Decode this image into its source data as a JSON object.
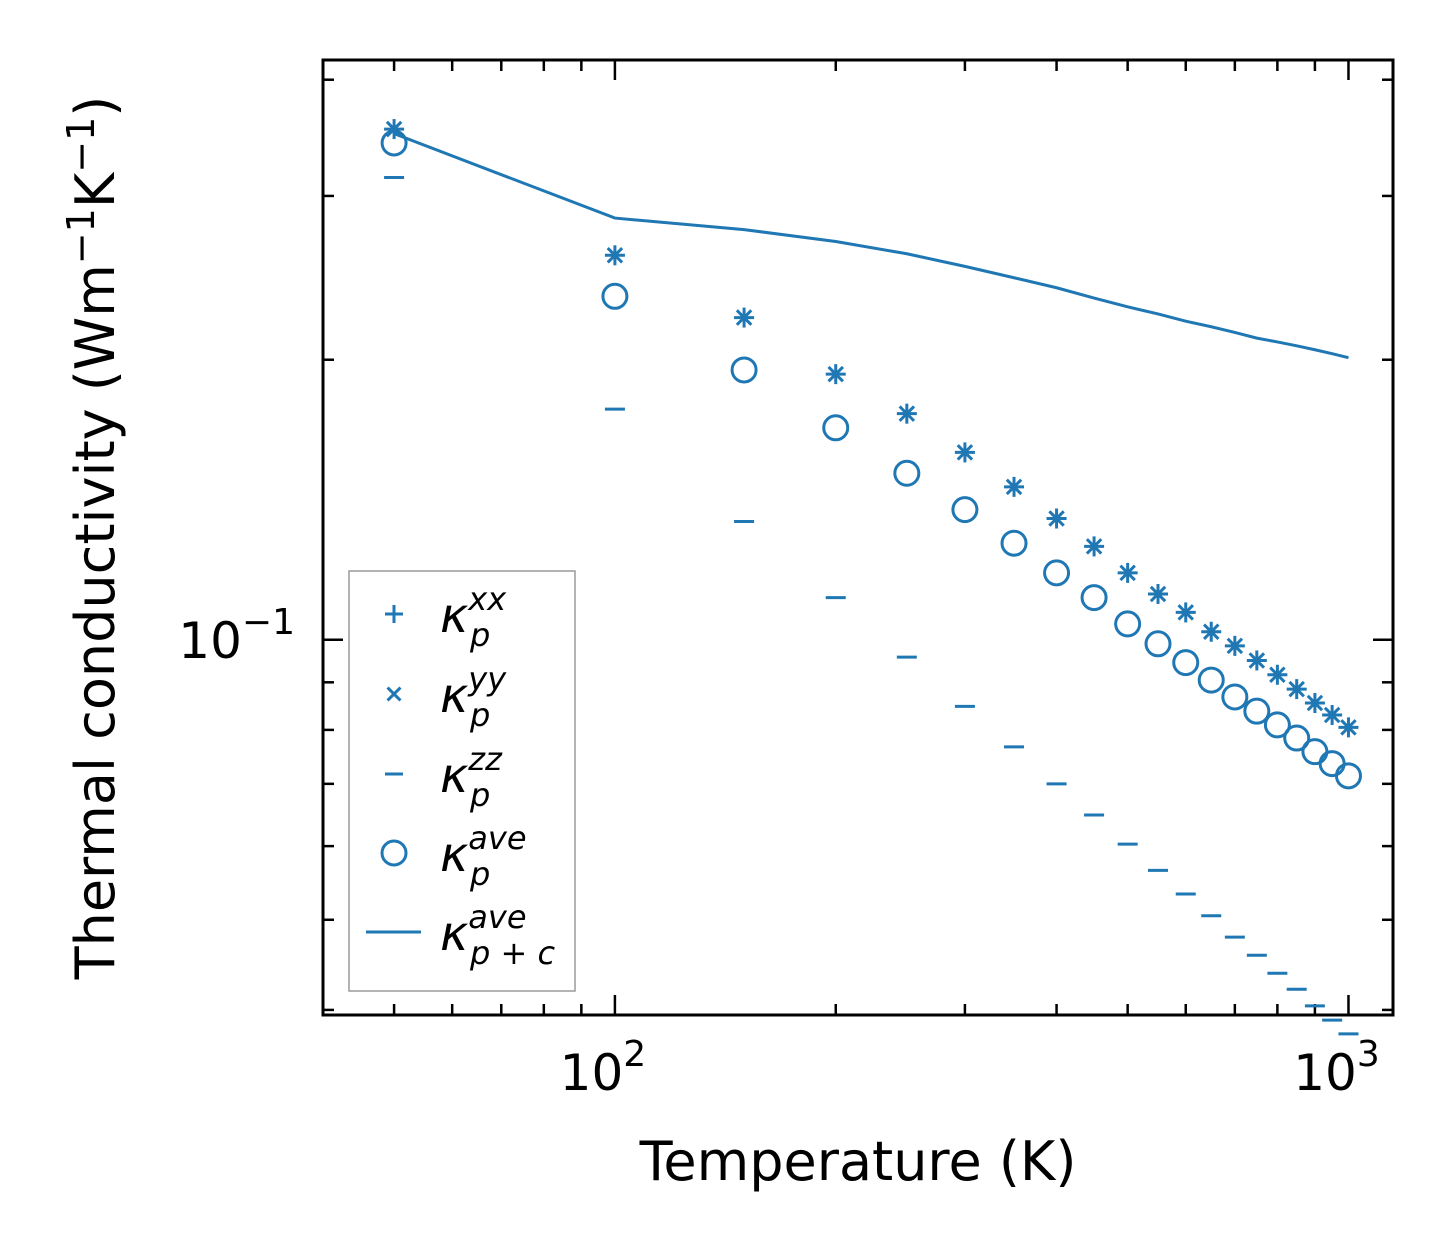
{
  "chart_data": {
    "type": "scatter",
    "xscale": "log",
    "yscale": "log",
    "xlabel": "Temperature (K)",
    "ylabel": {
      "text": "Thermal conductivity (Wm",
      "sup1": "−1",
      "mid": "K",
      "sup2": "−1",
      "end": ")"
    },
    "xlim": [
      40,
      1150
    ],
    "ylim": [
      0.0395,
      0.42
    ],
    "x_tick_labels": [
      {
        "value": 100,
        "base": "10",
        "exp": "2"
      },
      {
        "value": 1000,
        "base": "10",
        "exp": "3"
      }
    ],
    "y_tick_labels": [
      {
        "value": 0.1,
        "base": "10",
        "exp": "−1"
      }
    ],
    "x": [
      50,
      100,
      150,
      200,
      250,
      300,
      350,
      400,
      450,
      500,
      550,
      600,
      650,
      700,
      750,
      800,
      850,
      900,
      950,
      1000
    ],
    "series": [
      {
        "name": "kxx",
        "marker": "plus",
        "values": [
          0.354,
          0.259,
          0.222,
          0.193,
          0.175,
          0.159,
          0.146,
          0.135,
          0.126,
          0.118,
          0.112,
          0.107,
          0.102,
          0.0985,
          0.095,
          0.0917,
          0.0885,
          0.0855,
          0.083,
          0.0805
        ]
      },
      {
        "name": "kyy",
        "marker": "x",
        "values": [
          0.354,
          0.259,
          0.222,
          0.193,
          0.175,
          0.159,
          0.146,
          0.135,
          0.126,
          0.118,
          0.112,
          0.107,
          0.102,
          0.0985,
          0.095,
          0.0917,
          0.0885,
          0.0855,
          0.083,
          0.0805
        ]
      },
      {
        "name": "kzz",
        "marker": "dash",
        "values": [
          0.314,
          0.177,
          0.134,
          0.111,
          0.0958,
          0.0848,
          0.0767,
          0.07,
          0.0648,
          0.0603,
          0.0565,
          0.0533,
          0.0505,
          0.0479,
          0.0458,
          0.0438,
          0.0421,
          0.0404,
          0.039,
          0.0377
        ]
      },
      {
        "name": "kave",
        "marker": "circle",
        "values": [
          0.342,
          0.234,
          0.195,
          0.169,
          0.151,
          0.138,
          0.127,
          0.118,
          0.111,
          0.104,
          0.099,
          0.0945,
          0.0905,
          0.0868,
          0.0838,
          0.081,
          0.0784,
          0.0758,
          0.0736,
          0.0714
        ]
      },
      {
        "name": "kp+c",
        "marker": "line",
        "values": [
          0.35,
          0.284,
          0.276,
          0.268,
          0.26,
          0.252,
          0.245,
          0.239,
          0.233,
          0.228,
          0.224,
          0.22,
          0.217,
          0.214,
          0.211,
          0.209,
          0.207,
          0.205,
          0.203,
          0.201
        ]
      }
    ],
    "legend": {
      "location": "lower-left",
      "entries": [
        {
          "base": "κ",
          "sup": "xx",
          "sub": "p"
        },
        {
          "base": "κ",
          "sup": "yy",
          "sub": "p"
        },
        {
          "base": "κ",
          "sup": "zz",
          "sub": "p"
        },
        {
          "base": "κ",
          "sup": "ave",
          "sub": "p"
        },
        {
          "base": "κ",
          "sup": "ave",
          "sub": "p + c"
        }
      ]
    },
    "colors": {
      "series": "#1f77b4",
      "axis": "#000000",
      "legend_frame": "#9a9a9a"
    }
  }
}
